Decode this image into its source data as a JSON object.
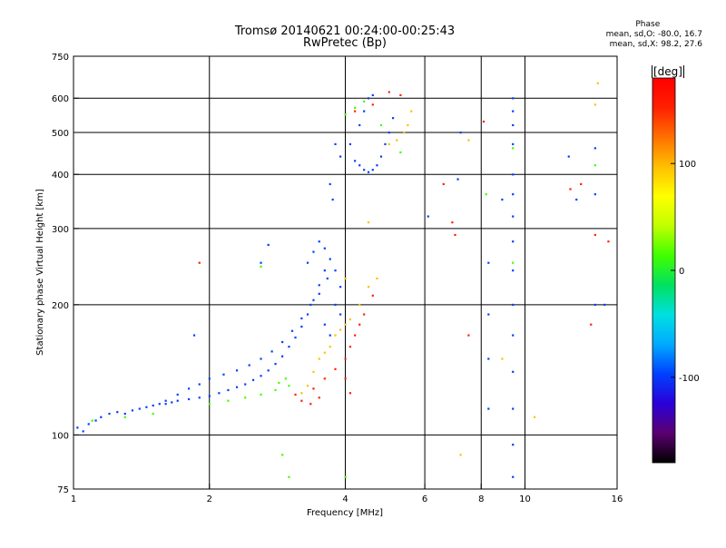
{
  "header": {
    "title_line1": "Tromsø 20140621 00:24:00-00:25:43",
    "title_line2": "RwPretec (Bp)"
  },
  "stats": {
    "heading": "Phase",
    "line1": "mean, sd,O: -80.0, 16.7",
    "line2": "mean, sd,X: 98.2, 27.6"
  },
  "colorbar": {
    "unit_label": "[deg]",
    "range": [
      -180,
      180
    ],
    "ticks": [
      {
        "value": 100,
        "label": "100"
      },
      {
        "value": 0,
        "label": "0"
      },
      {
        "value": -100,
        "label": "-100"
      }
    ],
    "colormap": [
      "#000000",
      "#5a0070",
      "#2a00d8",
      "#0040ff",
      "#00aaff",
      "#00e0e0",
      "#00e060",
      "#40ff00",
      "#c0ff00",
      "#ffff00",
      "#ffc000",
      "#ff7000",
      "#ff2000",
      "#ff0000"
    ]
  },
  "chart_data": {
    "type": "scatter",
    "title": "Tromsø 20140621 00:24:00-00:25:43",
    "subtitle": "RwPretec (Bp)",
    "xlabel": "Frequency [MHz]",
    "ylabel": "Stationary phase Virtual Height [km]",
    "x_scale": "log",
    "y_scale": "log",
    "xlim": [
      1,
      16
    ],
    "ylim": [
      75,
      750
    ],
    "x_ticks": [
      {
        "value": 1,
        "label": "1"
      },
      {
        "value": 2,
        "label": "2"
      },
      {
        "value": 4,
        "label": "4"
      },
      {
        "value": 6,
        "label": "6"
      },
      {
        "value": 8,
        "label": "8"
      },
      {
        "value": 10,
        "label": "10"
      },
      {
        "value": 16,
        "label": "16"
      }
    ],
    "y_ticks": [
      {
        "value": 75,
        "label": "75"
      },
      {
        "value": 100,
        "label": "100"
      },
      {
        "value": 200,
        "label": "200"
      },
      {
        "value": 300,
        "label": "300"
      },
      {
        "value": 400,
        "label": "400"
      },
      {
        "value": 500,
        "label": "500"
      },
      {
        "value": 600,
        "label": "600"
      },
      {
        "value": 750,
        "label": "750"
      }
    ],
    "x_gridlines": [
      2,
      4,
      6,
      8,
      10
    ],
    "y_gridlines": [
      100,
      200,
      300,
      400,
      500,
      600
    ],
    "grid": true,
    "color_variable": "Phase [deg]",
    "series": [
      {
        "color_phase_deg": -90,
        "points": [
          [
            1.02,
            104
          ],
          [
            1.05,
            102
          ],
          [
            1.08,
            106
          ],
          [
            1.12,
            108
          ],
          [
            1.15,
            110
          ],
          [
            1.2,
            112
          ],
          [
            1.25,
            113
          ],
          [
            1.3,
            112
          ],
          [
            1.35,
            114
          ],
          [
            1.4,
            115
          ],
          [
            1.45,
            116
          ],
          [
            1.5,
            117
          ],
          [
            1.55,
            118
          ],
          [
            1.6,
            118
          ],
          [
            1.65,
            119
          ],
          [
            1.7,
            120
          ],
          [
            1.8,
            121
          ],
          [
            1.9,
            122
          ],
          [
            2.0,
            123
          ],
          [
            2.1,
            125
          ],
          [
            2.2,
            127
          ],
          [
            2.3,
            129
          ],
          [
            2.4,
            131
          ],
          [
            2.5,
            134
          ],
          [
            2.6,
            137
          ],
          [
            2.7,
            141
          ],
          [
            2.8,
            146
          ],
          [
            2.9,
            152
          ],
          [
            3.0,
            160
          ],
          [
            3.1,
            168
          ],
          [
            3.2,
            178
          ],
          [
            3.3,
            190
          ],
          [
            3.4,
            205
          ],
          [
            3.5,
            222
          ],
          [
            3.6,
            240
          ],
          [
            3.7,
            255
          ],
          [
            3.8,
            240
          ],
          [
            3.9,
            220
          ],
          [
            3.3,
            250
          ],
          [
            3.4,
            265
          ],
          [
            3.5,
            280
          ],
          [
            3.6,
            270
          ],
          [
            4.2,
            430
          ],
          [
            4.3,
            420
          ],
          [
            4.4,
            410
          ],
          [
            4.5,
            405
          ],
          [
            4.6,
            410
          ],
          [
            4.7,
            420
          ],
          [
            4.8,
            440
          ],
          [
            4.9,
            470
          ],
          [
            5.0,
            500
          ],
          [
            5.1,
            540
          ],
          [
            4.3,
            520
          ],
          [
            4.4,
            560
          ],
          [
            4.5,
            600
          ],
          [
            4.6,
            610
          ],
          [
            4.1,
            470
          ],
          [
            3.9,
            440
          ],
          [
            3.8,
            470
          ],
          [
            3.75,
            350
          ],
          [
            3.7,
            380
          ],
          [
            1.6,
            120
          ],
          [
            1.7,
            124
          ],
          [
            1.8,
            128
          ],
          [
            1.9,
            131
          ],
          [
            2.0,
            135
          ],
          [
            2.15,
            138
          ],
          [
            2.3,
            141
          ],
          [
            2.45,
            145
          ],
          [
            2.6,
            150
          ],
          [
            2.75,
            156
          ],
          [
            2.9,
            164
          ],
          [
            3.05,
            174
          ],
          [
            3.2,
            186
          ],
          [
            3.35,
            200
          ],
          [
            3.5,
            212
          ],
          [
            3.65,
            230
          ],
          [
            3.8,
            200
          ],
          [
            3.9,
            190
          ],
          [
            3.7,
            170
          ],
          [
            3.6,
            180
          ],
          [
            9.4,
            600
          ],
          [
            9.4,
            560
          ],
          [
            9.4,
            520
          ],
          [
            9.4,
            470
          ],
          [
            9.4,
            400
          ],
          [
            9.4,
            360
          ],
          [
            9.4,
            320
          ],
          [
            9.4,
            280
          ],
          [
            9.4,
            240
          ],
          [
            9.4,
            200
          ],
          [
            9.4,
            170
          ],
          [
            9.4,
            140
          ],
          [
            9.4,
            115
          ],
          [
            9.4,
            95
          ],
          [
            9.4,
            80
          ],
          [
            8.3,
            250
          ],
          [
            8.3,
            190
          ],
          [
            8.3,
            150
          ],
          [
            8.3,
            115
          ],
          [
            14.3,
            460
          ],
          [
            14.3,
            360
          ],
          [
            14.3,
            200
          ],
          [
            15.0,
            200
          ],
          [
            12.5,
            440
          ],
          [
            13.0,
            350
          ],
          [
            8.9,
            350
          ],
          [
            7.1,
            390
          ],
          [
            7.2,
            500
          ],
          [
            6.1,
            320
          ],
          [
            2.6,
            250
          ],
          [
            2.7,
            275
          ],
          [
            1.85,
            170
          ]
        ]
      },
      {
        "color_phase_deg": 10,
        "points": [
          [
            1.1,
            108
          ],
          [
            1.3,
            110
          ],
          [
            1.5,
            112
          ],
          [
            2.0,
            118
          ],
          [
            2.2,
            120
          ],
          [
            2.4,
            122
          ],
          [
            2.6,
            124
          ],
          [
            2.8,
            127
          ],
          [
            3.0,
            130
          ],
          [
            2.85,
            132
          ],
          [
            2.95,
            135
          ],
          [
            4.0,
            550
          ],
          [
            4.2,
            570
          ],
          [
            4.4,
            590
          ],
          [
            4.8,
            520
          ],
          [
            5.3,
            450
          ],
          [
            9.4,
            460
          ],
          [
            9.4,
            250
          ],
          [
            14.3,
            420
          ],
          [
            2.9,
            90
          ],
          [
            3.0,
            80
          ],
          [
            4.0,
            80
          ],
          [
            2.6,
            245
          ],
          [
            8.2,
            360
          ]
        ]
      },
      {
        "color_phase_deg": 110,
        "points": [
          [
            3.2,
            125
          ],
          [
            3.3,
            130
          ],
          [
            3.4,
            140
          ],
          [
            3.5,
            150
          ],
          [
            3.6,
            155
          ],
          [
            3.7,
            160
          ],
          [
            3.8,
            170
          ],
          [
            3.9,
            175
          ],
          [
            4.0,
            180
          ],
          [
            4.1,
            185
          ],
          [
            4.3,
            200
          ],
          [
            4.5,
            220
          ],
          [
            4.7,
            230
          ],
          [
            5.0,
            470
          ],
          [
            5.2,
            480
          ],
          [
            5.4,
            500
          ],
          [
            5.5,
            520
          ],
          [
            5.6,
            560
          ],
          [
            4.5,
            310
          ],
          [
            4.0,
            230
          ],
          [
            8.9,
            150
          ],
          [
            7.2,
            90
          ],
          [
            14.3,
            580
          ],
          [
            10.5,
            110
          ],
          [
            14.5,
            650
          ],
          [
            7.5,
            480
          ]
        ]
      },
      {
        "color_phase_deg": 150,
        "points": [
          [
            3.2,
            120
          ],
          [
            3.4,
            128
          ],
          [
            3.6,
            135
          ],
          [
            3.8,
            142
          ],
          [
            4.0,
            150
          ],
          [
            4.1,
            160
          ],
          [
            4.2,
            170
          ],
          [
            4.3,
            180
          ],
          [
            4.4,
            190
          ],
          [
            4.6,
            210
          ],
          [
            3.1,
            124
          ],
          [
            3.35,
            118
          ],
          [
            3.5,
            122
          ],
          [
            4.0,
            135
          ],
          [
            4.1,
            125
          ],
          [
            5.0,
            620
          ],
          [
            5.3,
            610
          ],
          [
            6.6,
            380
          ],
          [
            6.9,
            310
          ],
          [
            7.0,
            290
          ],
          [
            7.5,
            170
          ],
          [
            8.1,
            530
          ],
          [
            12.6,
            370
          ],
          [
            14.0,
            180
          ],
          [
            14.3,
            290
          ],
          [
            15.3,
            280
          ],
          [
            13.3,
            380
          ],
          [
            1.9,
            250
          ],
          [
            4.2,
            560
          ],
          [
            4.6,
            580
          ]
        ]
      }
    ]
  }
}
